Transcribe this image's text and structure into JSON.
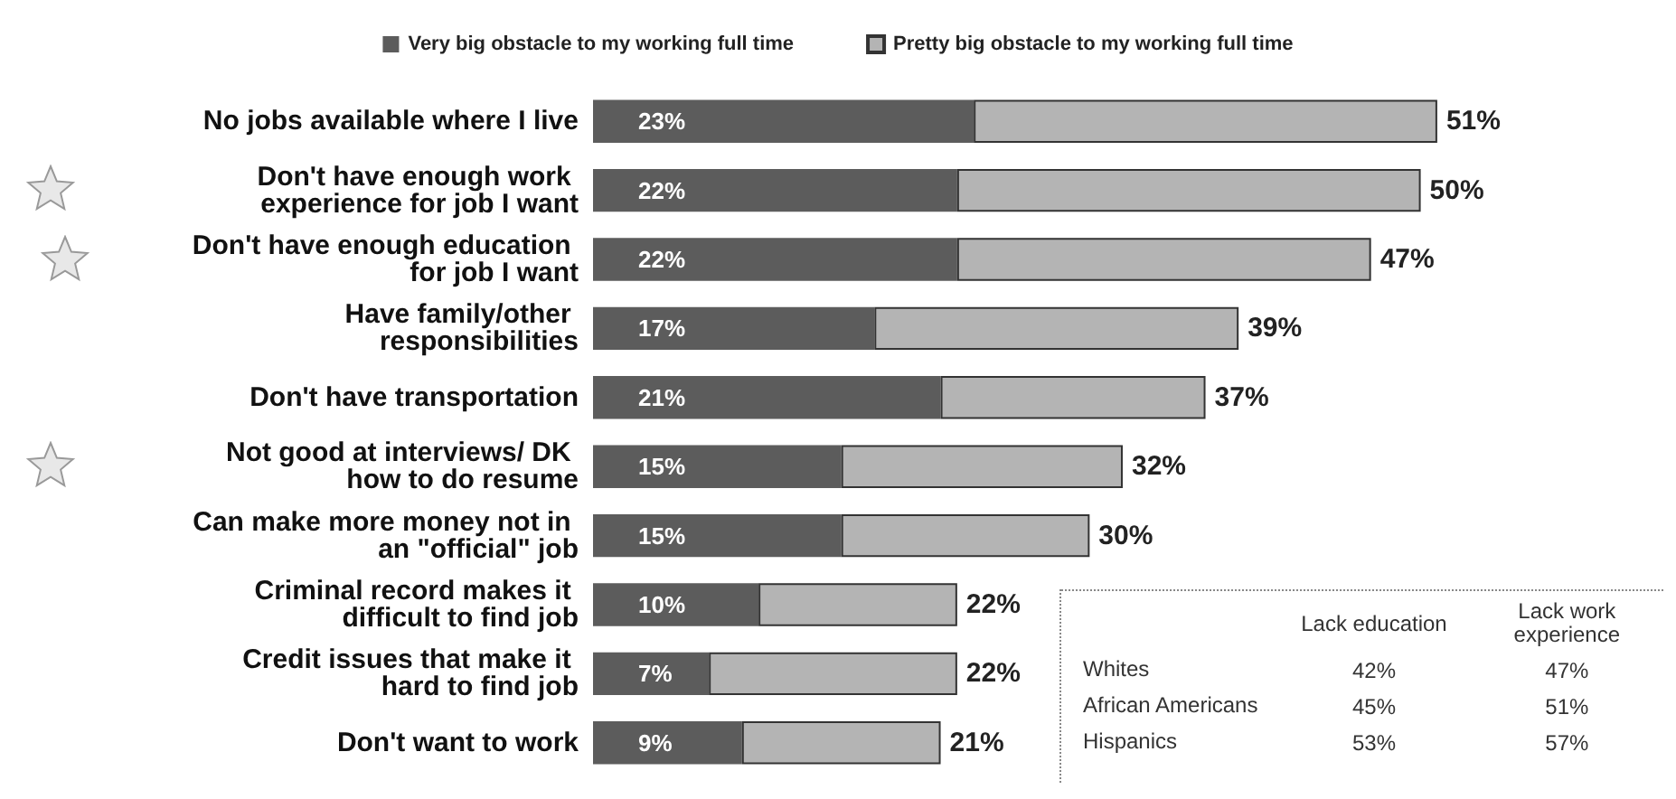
{
  "chart_data": [
    {
      "type": "bar",
      "orientation": "horizontal",
      "stacked": true,
      "legend": "top",
      "categories": [
        "No jobs available where I live",
        "Don't have enough work experience for job I want",
        "Don't have enough education for job I want",
        "Have family/other responsibilities",
        "Don't have transportation",
        "Not good at interviews/ DK how to do resume",
        "Can make more money not in an \"official\" job",
        "Criminal record makes it difficult to find job",
        "Credit issues that make it hard to find job",
        "Don't want to work"
      ],
      "series": [
        {
          "name": "Very big obstacle to my working full time",
          "color": "#5c5c5c",
          "values": [
            23,
            22,
            22,
            17,
            21,
            15,
            15,
            10,
            7,
            9
          ],
          "value_labels": [
            "23%",
            "22%",
            "22%",
            "17%",
            "21%",
            "15%",
            "15%",
            "10%",
            "7%",
            "9%"
          ]
        },
        {
          "name": "Pretty big obstacle to my working full time",
          "color": "#b4b4b4",
          "values": [
            28,
            28,
            25,
            22,
            16,
            17,
            15,
            12,
            15,
            12
          ]
        }
      ],
      "totals": [
        "51%",
        "50%",
        "47%",
        "39%",
        "37%",
        "32%",
        "30%",
        "22%",
        "22%",
        "21%"
      ]
    },
    {
      "type": "other",
      "categories": [
        "Lack education",
        "Lack work experience"
      ],
      "y_categories": [
        "Whites",
        "African Americans",
        "Hispanics"
      ],
      "cells": [
        [
          "42%",
          "47%"
        ],
        [
          "45%",
          "51%"
        ],
        [
          "53%",
          "57%"
        ]
      ]
    }
  ]
}
